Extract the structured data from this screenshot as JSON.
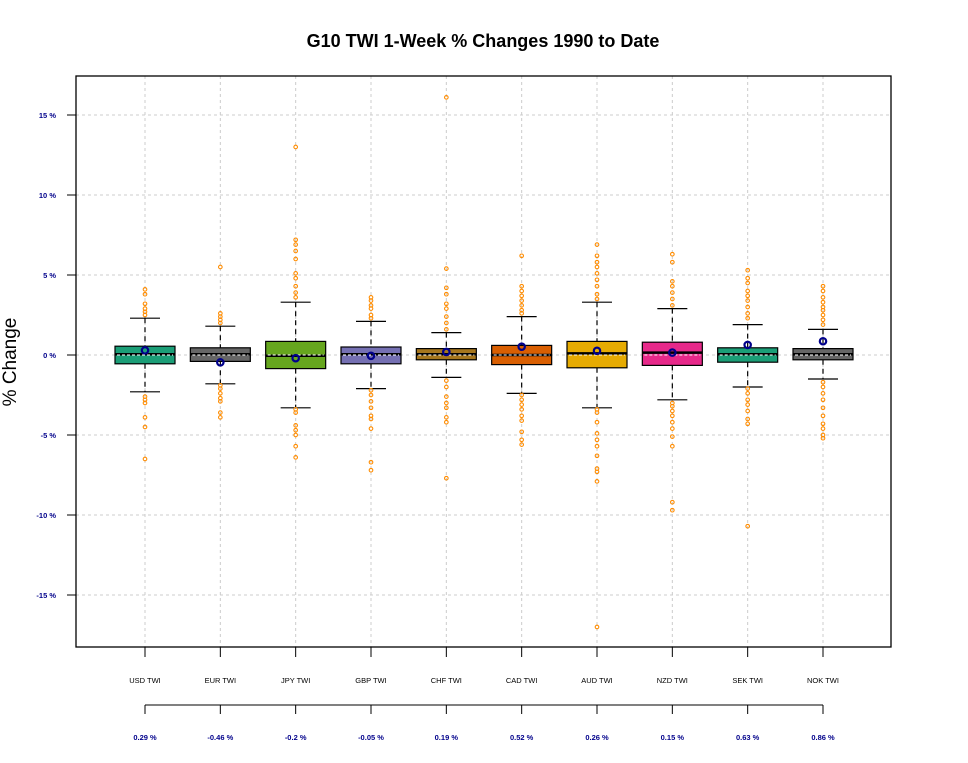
{
  "chart_data": {
    "type": "box",
    "title": "G10 TWI 1-Week % Changes 1990 to Date",
    "xlabel": "",
    "ylabel": "% Change",
    "ylim": [
      -18.1,
      17.6
    ],
    "y_ticks": [
      15,
      10,
      5,
      0,
      -5,
      -10,
      -15
    ],
    "y_tick_labels": [
      "15 %",
      "10 %",
      "5 %",
      "0 %",
      "-5 %",
      "-10 %",
      "-15 %"
    ],
    "grid": true,
    "colors": {
      "outlier": "#FF8C00",
      "mean_marker": "#00008B",
      "tick_label": "#00008B",
      "gridline": "#CCCCCC"
    },
    "categories": [
      "USD TWI",
      "EUR TWI",
      "JPY TWI",
      "GBP TWI",
      "CHF TWI",
      "CAD TWI",
      "AUD TWI",
      "NZD TWI",
      "SEK TWI",
      "NOK TWI"
    ],
    "series": [
      {
        "name": "USD TWI",
        "color": "#1B9E77",
        "q1": -0.55,
        "median": 0.05,
        "q3": 0.55,
        "whisker_low": -2.3,
        "whisker_high": 2.3,
        "mean": 0.29,
        "mean_label": "0.29 %",
        "outliers": [
          4.1,
          3.8,
          3.2,
          2.9,
          2.7,
          2.5,
          -2.6,
          -2.8,
          -3.0,
          -3.9,
          -4.5,
          -6.5
        ]
      },
      {
        "name": "EUR TWI",
        "color": "#666666",
        "q1": -0.4,
        "median": 0.05,
        "q3": 0.45,
        "whisker_low": -1.8,
        "whisker_high": 1.8,
        "mean": -0.46,
        "mean_label": "-0.46 %",
        "outliers": [
          5.5,
          2.6,
          2.4,
          2.2,
          2.0,
          -1.9,
          -2.1,
          -2.4,
          -2.7,
          -2.9,
          -3.6,
          -3.9
        ]
      },
      {
        "name": "JPY TWI",
        "color": "#66A61E",
        "q1": -0.85,
        "median": -0.05,
        "q3": 0.85,
        "whisker_low": -3.3,
        "whisker_high": 3.3,
        "mean": -0.2,
        "mean_label": "-0.2 %",
        "outliers": [
          13.0,
          7.2,
          6.9,
          6.5,
          6.0,
          5.1,
          4.8,
          4.3,
          3.9,
          3.6,
          -3.4,
          -3.6,
          -4.4,
          -4.7,
          -5.0,
          -5.7,
          -6.4
        ]
      },
      {
        "name": "GBP TWI",
        "color": "#7570B3",
        "q1": -0.55,
        "median": 0.05,
        "q3": 0.5,
        "whisker_low": -2.1,
        "whisker_high": 2.1,
        "mean": -0.05,
        "mean_label": "-0.05 %",
        "outliers": [
          3.6,
          3.4,
          3.1,
          2.9,
          2.5,
          2.3,
          -2.2,
          -2.5,
          -2.9,
          -3.3,
          -3.8,
          -4.0,
          -4.6,
          -6.7,
          -7.2
        ]
      },
      {
        "name": "CHF TWI",
        "color": "#A6761D",
        "q1": -0.3,
        "median": 0.05,
        "q3": 0.4,
        "whisker_low": -1.4,
        "whisker_high": 1.4,
        "mean": 0.19,
        "mean_label": "0.19 %",
        "outliers": [
          16.1,
          5.4,
          4.2,
          3.8,
          3.2,
          2.9,
          2.4,
          2.0,
          1.6,
          -1.6,
          -2.0,
          -2.6,
          -3.0,
          -3.3,
          -3.9,
          -4.2,
          -7.7
        ]
      },
      {
        "name": "CAD TWI",
        "color": "#D95F02",
        "q1": -0.6,
        "median": 0.0,
        "q3": 0.6,
        "whisker_low": -2.4,
        "whisker_high": 2.4,
        "mean": 0.52,
        "mean_label": "0.52 %",
        "outliers": [
          6.2,
          4.3,
          4.0,
          3.7,
          3.4,
          3.1,
          2.8,
          2.6,
          -2.5,
          -2.8,
          -3.1,
          -3.4,
          -3.8,
          -4.1,
          -4.8,
          -5.3,
          -5.6
        ]
      },
      {
        "name": "AUD TWI",
        "color": "#E6AB02",
        "q1": -0.8,
        "median": 0.1,
        "q3": 0.85,
        "whisker_low": -3.3,
        "whisker_high": 3.3,
        "mean": 0.26,
        "mean_label": "0.26 %",
        "outliers": [
          6.9,
          6.2,
          5.8,
          5.5,
          5.1,
          4.7,
          4.3,
          3.8,
          3.5,
          -3.4,
          -3.6,
          -4.2,
          -4.9,
          -5.3,
          -5.7,
          -6.3,
          -7.1,
          -7.3,
          -7.9,
          -17.0
        ]
      },
      {
        "name": "NZD TWI",
        "color": "#E7298A",
        "q1": -0.65,
        "median": 0.15,
        "q3": 0.8,
        "whisker_low": -2.8,
        "whisker_high": 2.9,
        "mean": 0.15,
        "mean_label": "0.15 %",
        "outliers": [
          6.3,
          5.8,
          4.6,
          4.3,
          3.9,
          3.5,
          3.1,
          -3.0,
          -3.2,
          -3.5,
          -3.8,
          -4.2,
          -4.6,
          -5.1,
          -5.7,
          -9.2,
          -9.7
        ]
      },
      {
        "name": "SEK TWI",
        "color": "#1B9E77",
        "q1": -0.45,
        "median": 0.05,
        "q3": 0.45,
        "whisker_low": -2.0,
        "whisker_high": 1.9,
        "mean": 0.63,
        "mean_label": "0.63 %",
        "outliers": [
          5.3,
          4.8,
          4.5,
          4.0,
          3.7,
          3.4,
          3.0,
          2.6,
          2.3,
          -2.1,
          -2.4,
          -2.8,
          -3.1,
          -3.5,
          -4.0,
          -4.3,
          -10.7
        ]
      },
      {
        "name": "NOK TWI",
        "color": "#666666",
        "q1": -0.3,
        "median": 0.05,
        "q3": 0.4,
        "whisker_low": -1.5,
        "whisker_high": 1.6,
        "mean": 0.86,
        "mean_label": "0.86 %",
        "outliers": [
          4.3,
          4.0,
          3.6,
          3.3,
          3.0,
          2.8,
          2.5,
          2.2,
          1.9,
          -1.7,
          -2.0,
          -2.4,
          -2.8,
          -3.3,
          -3.8,
          -4.3,
          -4.6,
          -5.0,
          -5.2
        ]
      }
    ]
  }
}
